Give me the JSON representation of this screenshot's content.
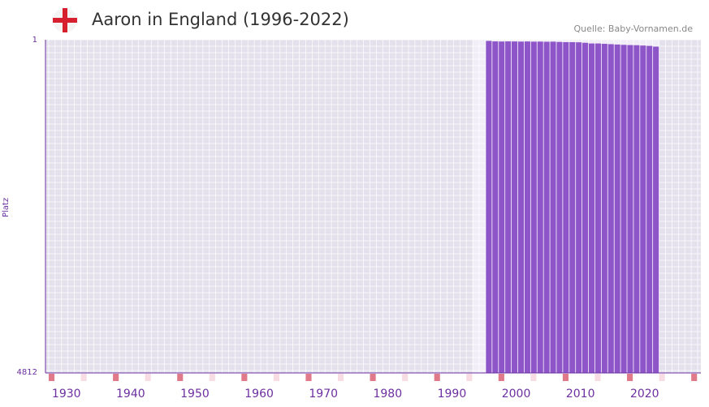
{
  "header": {
    "title": "Aaron in England (1996-2022)",
    "source": "Quelle: Baby-Vornamen.de",
    "flag_icon": "england-flag-icon"
  },
  "colors": {
    "bar": "#8e55c8",
    "plot_bg_old": "#e4e0ec",
    "plot_bg_recent": "#f1eef8",
    "grid": "#ffffff",
    "axis": "#6b2fa0",
    "decade_marker": "#e07a8a",
    "half_decade_marker": "#f7dde3"
  },
  "chart_data": {
    "type": "bar",
    "title": "Aaron in England (1996-2022)",
    "xlabel": "",
    "ylabel": "Platz",
    "y_inverted": true,
    "ylim": [
      1,
      4812
    ],
    "ytick_labels": [
      "1",
      "4812"
    ],
    "xlim": [
      1927,
      2029
    ],
    "xtick_labels": [
      "1930",
      "1940",
      "1950",
      "1960",
      "1970",
      "1980",
      "1990",
      "2000",
      "2010",
      "2020"
    ],
    "xtick_values": [
      1930,
      1940,
      1950,
      1960,
      1970,
      1980,
      1990,
      2000,
      2010,
      2020
    ],
    "highlight_range": [
      1994,
      2022
    ],
    "x": [
      1996,
      1997,
      1998,
      1999,
      2000,
      2001,
      2002,
      2003,
      2004,
      2005,
      2006,
      2007,
      2008,
      2009,
      2010,
      2011,
      2012,
      2013,
      2014,
      2015,
      2016,
      2017,
      2018,
      2019,
      2020,
      2021,
      2022
    ],
    "values": [
      18,
      25,
      27,
      25,
      26,
      28,
      26,
      29,
      28,
      30,
      29,
      33,
      36,
      36,
      38,
      45,
      55,
      55,
      60,
      65,
      70,
      75,
      78,
      80,
      85,
      90,
      100
    ]
  }
}
